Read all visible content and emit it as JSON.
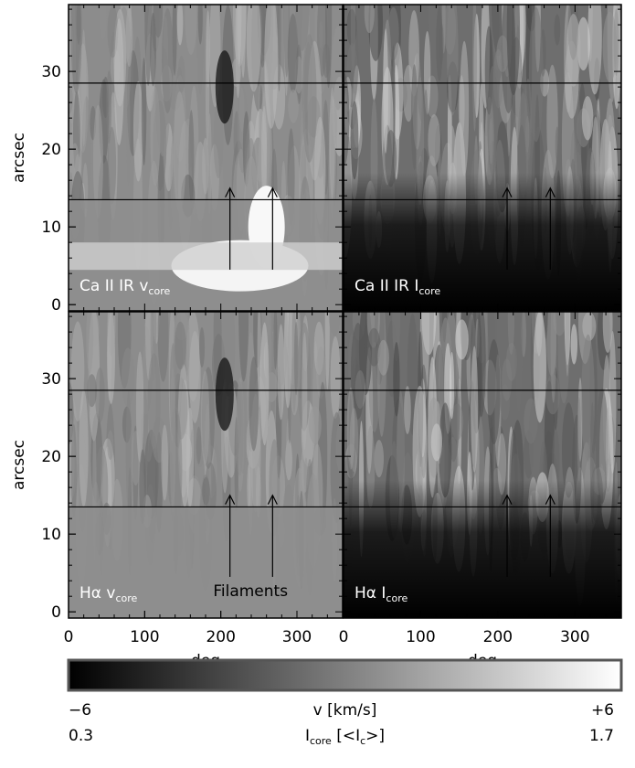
{
  "chart_data": [
    {
      "type": "image",
      "label_parts": [
        {
          "text": "Ca II IR v"
        },
        {
          "sub": "core"
        }
      ],
      "xlim": [
        0,
        360
      ],
      "ylim": [
        -0.8,
        38.6
      ],
      "yticks": [
        0,
        10,
        20,
        30
      ],
      "ylabel": "arcsec",
      "hlines": [
        28.5,
        13.5
      ],
      "arrows": [
        {
          "x": 212,
          "y": [
            4.5,
            15
          ]
        },
        {
          "x": 268,
          "y": [
            4.5,
            15
          ]
        }
      ]
    },
    {
      "type": "image",
      "label_parts": [
        {
          "text": "Ca II IR I"
        },
        {
          "sub": "core"
        }
      ],
      "xlim": [
        0,
        360
      ],
      "ylim": [
        -0.8,
        38.6
      ],
      "hlines": [
        28.5,
        13.5
      ],
      "arrows": [
        {
          "x": 212,
          "y": [
            4.5,
            15
          ]
        },
        {
          "x": 268,
          "y": [
            4.5,
            15
          ]
        }
      ]
    },
    {
      "type": "image",
      "label_parts": [
        {
          "text": "Hα v"
        },
        {
          "sub": "core"
        }
      ],
      "xlim": [
        0,
        360
      ],
      "ylim": [
        -0.8,
        38.6
      ],
      "yticks": [
        0,
        10,
        20,
        30
      ],
      "ylabel": "arcsec",
      "xticks": [
        0,
        100,
        200,
        300
      ],
      "xlabel": "deg",
      "annotation": "Filaments",
      "hlines": [
        28.5,
        13.5
      ],
      "arrows": [
        {
          "x": 212,
          "y": [
            4.5,
            15
          ]
        },
        {
          "x": 268,
          "y": [
            4.5,
            15
          ]
        }
      ]
    },
    {
      "type": "image",
      "label_parts": [
        {
          "text": "Hα I"
        },
        {
          "sub": "core"
        }
      ],
      "xlim": [
        0,
        360
      ],
      "ylim": [
        -0.8,
        38.6
      ],
      "xticks": [
        0,
        100,
        200,
        300
      ],
      "xlabel": "deg",
      "hlines": [
        28.5,
        13.5
      ],
      "arrows": [
        {
          "x": 212,
          "y": [
            4.5,
            15
          ]
        },
        {
          "x": 268,
          "y": [
            4.5,
            15
          ]
        }
      ]
    },
    {
      "type": "colorbar",
      "colors": [
        "#000000",
        "#ffffff"
      ],
      "scales": [
        {
          "ticks": [
            {
              "value": -6,
              "label": "−6"
            },
            {
              "value": 6,
              "label": "+6"
            }
          ],
          "label_parts": [
            {
              "text": "v [km/s]"
            }
          ]
        },
        {
          "ticks": [
            0.3,
            1.7
          ],
          "label_parts": [
            {
              "text": "I"
            },
            {
              "sub": "core"
            },
            {
              "text": " [<I"
            },
            {
              "sub": "c"
            },
            {
              "text": ">]"
            }
          ]
        }
      ]
    }
  ]
}
